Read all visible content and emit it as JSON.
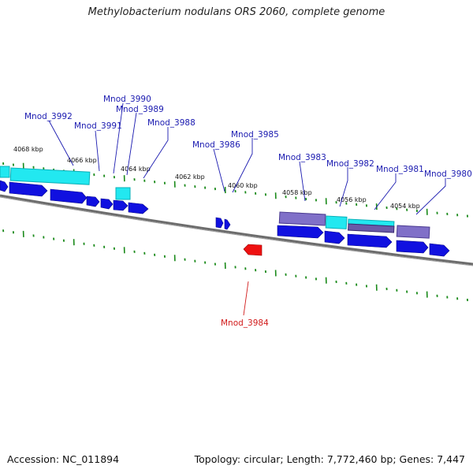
{
  "title": "Methylobacterium nodulans ORS 2060, complete genome",
  "footer": {
    "accession": "Accession: NC_011894",
    "summary": "Topology: circular; Length: 7,772,460 bp; Genes: 7,447"
  },
  "colors": {
    "forward_gene": "#1010e0",
    "reverse_gene": "#ee1111",
    "cyan_feature": "#22e8f0",
    "purple_feature": "#8070c8",
    "tick_green": "#1a8a1a",
    "backbone": "#707070",
    "label_blue": "#1a1ab0",
    "label_red": "#d11a1a"
  },
  "kbp_labels": [
    "4068 kbp",
    "4066 kbp",
    "4064 kbp",
    "4062 kbp",
    "4060 kbp",
    "4058 kbp",
    "4056 kbp",
    "4054 kbp"
  ],
  "gene_labels": [
    "Mnod_3992",
    "Mnod_3991",
    "Mnod_3990",
    "Mnod_3989",
    "Mnod_3988",
    "Mnod_3986",
    "Mnod_3985",
    "Mnod_3983",
    "Mnod_3982",
    "Mnod_3981",
    "Mnod_3980",
    "Mnod_3984"
  ]
}
